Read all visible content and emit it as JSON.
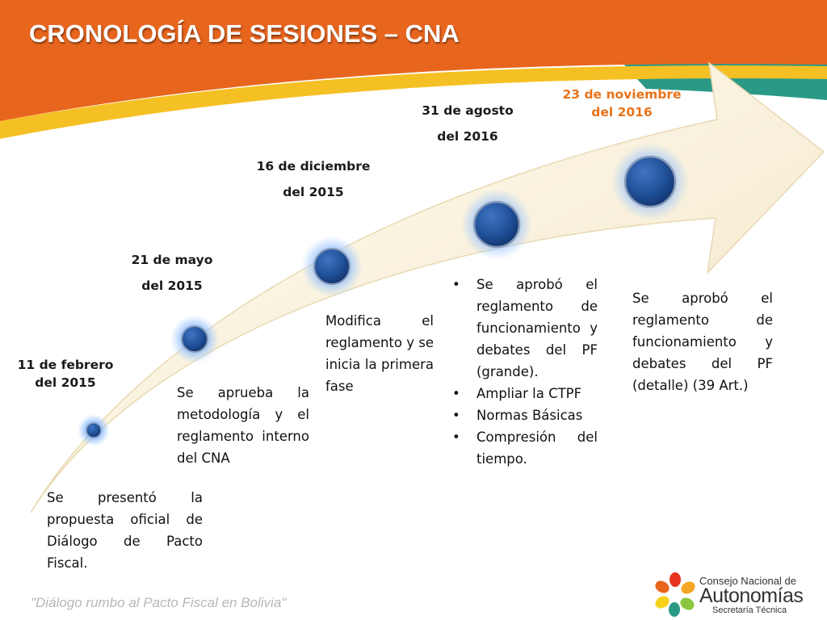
{
  "title": "CRONOLOGÍA DE SESIONES – CNA",
  "colors": {
    "orange": "#e8651e",
    "teal": "#2a9a86",
    "yellow": "#f5c024",
    "date_highlight": "#e8731a",
    "marker": "#1f4f96"
  },
  "events": [
    {
      "date_line1": "11 de febrero",
      "date_line2": "del 2015",
      "description": "Se presentó la propuesta oficial de Diálogo de Pacto Fiscal."
    },
    {
      "date_line1": "21 de mayo",
      "date_line2": "del 2015",
      "description": "Se aprueba la metodología y el reglamento interno del CNA"
    },
    {
      "date_line1": "16 de diciembre",
      "date_line2": "del 2015",
      "description": "Modifica el reglamento y se inicia la primera fase"
    },
    {
      "date_line1": "31 de agosto",
      "date_line2": "del 2016",
      "bullets": [
        "Se aprobó el reglamento de funcionamiento y debates del PF (grande).",
        "Ampliar la CTPF",
        "Normas Básicas",
        "Compresión del tiempo."
      ]
    },
    {
      "date_line1": "23 de noviembre",
      "date_line2": "del 2016",
      "description": "Se aprobó el reglamento de funcionamiento y debates del PF (detalle) (39 Art.)"
    }
  ],
  "footer": "\"Diálogo rumbo al Pacto Fiscal en Bolivia\"",
  "logo": {
    "line1": "Consejo Nacional de",
    "line2": "Autonomías",
    "line3": "Secretaría Técnica"
  }
}
